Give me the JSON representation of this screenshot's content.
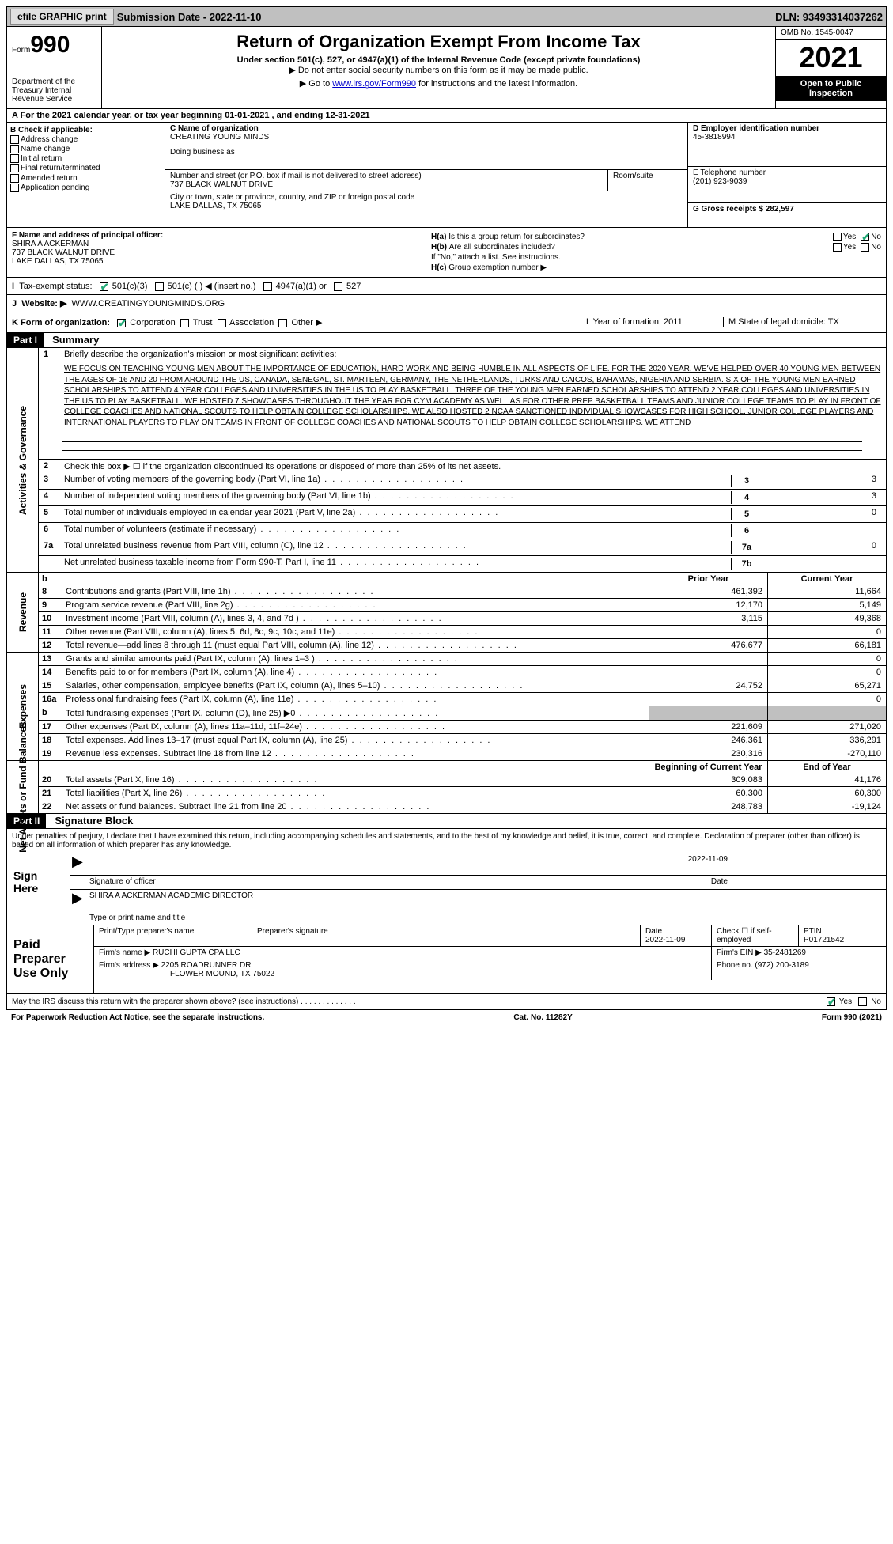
{
  "topbar": {
    "efile_btn": "efile GRAPHIC print",
    "submission": "Submission Date - 2022-11-10",
    "dln": "DLN: 93493314037262"
  },
  "header": {
    "form_prefix": "Form",
    "form_no": "990",
    "dept": "Department of the Treasury\nInternal Revenue Service",
    "title": "Return of Organization Exempt From Income Tax",
    "sub": "Under section 501(c), 527, or 4947(a)(1) of the Internal Revenue Code (except private foundations)",
    "sub2": "▶ Do not enter social security numbers on this form as it may be made public.",
    "goto_pre": "▶ Go to ",
    "goto_link": "www.irs.gov/Form990",
    "goto_post": " for instructions and the latest information.",
    "omb": "OMB No. 1545-0047",
    "year": "2021",
    "open": "Open to Public Inspection"
  },
  "a_row": "A For the 2021 calendar year, or tax year beginning 01-01-2021   , and ending 12-31-2021",
  "b": {
    "title": "B Check if applicable:",
    "items": [
      "Address change",
      "Name change",
      "Initial return",
      "Final return/terminated",
      "Amended return",
      "Application pending"
    ]
  },
  "c": {
    "name_label": "C Name of organization",
    "name": "CREATING YOUNG MINDS",
    "dba_label": "Doing business as",
    "addr_label": "Number and street (or P.O. box if mail is not delivered to street address)",
    "addr": "737 BLACK WALNUT DRIVE",
    "room_label": "Room/suite",
    "city_label": "City or town, state or province, country, and ZIP or foreign postal code",
    "city": "LAKE DALLAS, TX  75065"
  },
  "d": {
    "label": "D Employer identification number",
    "val": "45-3818994"
  },
  "e": {
    "label": "E Telephone number",
    "val": "(201) 923-9039"
  },
  "g": {
    "label": "G Gross receipts $ 282,597"
  },
  "f": {
    "label": "F  Name and address of principal officer:",
    "name": "SHIRA A ACKERMAN",
    "addr1": "737 BLACK WALNUT DRIVE",
    "addr2": "LAKE DALLAS, TX  75065"
  },
  "h": {
    "a_label": "Is this a group return for subordinates?",
    "a_tag": "H(a)",
    "b_label": "Are all subordinates included?",
    "b_tag": "H(b)",
    "note": "If \"No,\" attach a list. See instructions.",
    "c_label": "Group exemption number ▶",
    "c_tag": "H(c)",
    "yes": "Yes",
    "no": "No"
  },
  "i": {
    "label": "Tax-exempt status:",
    "opts": [
      "501(c)(3)",
      "501(c) (  ) ◀ (insert no.)",
      "4947(a)(1) or",
      "527"
    ]
  },
  "j": {
    "label": "Website: ▶",
    "val": "WWW.CREATINGYOUNGMINDS.ORG"
  },
  "k": {
    "label": "K Form of organization:",
    "opts": [
      "Corporation",
      "Trust",
      "Association",
      "Other ▶"
    ],
    "l_label": "L Year of formation: 2011",
    "m_label": "M State of legal domicile: TX"
  },
  "part1": {
    "tag": "Part I",
    "title": "Summary",
    "line1_label": "Briefly describe the organization's mission or most significant activities:",
    "line1_text": "WE FOCUS ON TEACHING YOUNG MEN ABOUT THE IMPORTANCE OF EDUCATION, HARD WORK AND BEING HUMBLE IN ALL ASPECTS OF LIFE. FOR THE 2020 YEAR, WE'VE HELPED OVER 40 YOUNG MEN BETWEEN THE AGES OF 16 AND 20 FROM AROUND THE US, CANADA, SENEGAL, ST. MARTEEN, GERMANY, THE NETHERLANDS, TURKS AND CAICOS, BAHAMAS, NIGERIA AND SERBIA. SIX OF THE YOUNG MEN EARNED SCHOLARSHIPS TO ATTEND 4 YEAR COLLEGES AND UNIVERSITIES IN THE US TO PLAY BASKETBALL. THREE OF THE YOUNG MEN EARNED SCHOLARSHIPS TO ATTEND 2 YEAR COLLEGES AND UNIVERSITIES IN THE US TO PLAY BASKETBALL. WE HOSTED 7 SHOWCASES THROUGHOUT THE YEAR FOR CYM ACADEMY AS WELL AS FOR OTHER PREP BASKETBALL TEAMS AND JUNIOR COLLEGE TEAMS TO PLAY IN FRONT OF COLLEGE COACHES AND NATIONAL SCOUTS TO HELP OBTAIN COLLEGE SCHOLARSHIPS. WE ALSO HOSTED 2 NCAA SANCTIONED INDIVIDUAL SHOWCASES FOR HIGH SCHOOL, JUNIOR COLLEGE PLAYERS AND INTERNATIONAL PLAYERS TO PLAY ON TEAMS IN FRONT OF COLLEGE COACHES AND NATIONAL SCOUTS TO HELP OBTAIN COLLEGE SCHOLARSHIPS. WE ATTEND",
    "line2": "Check this box ▶ ☐ if the organization discontinued its operations or disposed of more than 25% of its net assets.",
    "lines_gov": [
      {
        "n": "3",
        "d": "Number of voting members of the governing body (Part VI, line 1a)",
        "box": "3",
        "v": "3"
      },
      {
        "n": "4",
        "d": "Number of independent voting members of the governing body (Part VI, line 1b)",
        "box": "4",
        "v": "3"
      },
      {
        "n": "5",
        "d": "Total number of individuals employed in calendar year 2021 (Part V, line 2a)",
        "box": "5",
        "v": "0"
      },
      {
        "n": "6",
        "d": "Total number of volunteers (estimate if necessary)",
        "box": "6",
        "v": ""
      },
      {
        "n": "7a",
        "d": "Total unrelated business revenue from Part VIII, column (C), line 12",
        "box": "7a",
        "v": "0"
      },
      {
        "n": "",
        "d": "Net unrelated business taxable income from Form 990-T, Part I, line 11",
        "box": "7b",
        "v": ""
      }
    ],
    "col_prior": "Prior Year",
    "col_current": "Current Year",
    "col_begin": "Beginning of Current Year",
    "col_end": "End of Year",
    "revenue": [
      {
        "n": "8",
        "d": "Contributions and grants (Part VIII, line 1h)",
        "p": "461,392",
        "c": "11,664"
      },
      {
        "n": "9",
        "d": "Program service revenue (Part VIII, line 2g)",
        "p": "12,170",
        "c": "5,149"
      },
      {
        "n": "10",
        "d": "Investment income (Part VIII, column (A), lines 3, 4, and 7d )",
        "p": "3,115",
        "c": "49,368"
      },
      {
        "n": "11",
        "d": "Other revenue (Part VIII, column (A), lines 5, 6d, 8c, 9c, 10c, and 11e)",
        "p": "",
        "c": "0"
      },
      {
        "n": "12",
        "d": "Total revenue—add lines 8 through 11 (must equal Part VIII, column (A), line 12)",
        "p": "476,677",
        "c": "66,181"
      }
    ],
    "expenses": [
      {
        "n": "13",
        "d": "Grants and similar amounts paid (Part IX, column (A), lines 1–3 )",
        "p": "",
        "c": "0"
      },
      {
        "n": "14",
        "d": "Benefits paid to or for members (Part IX, column (A), line 4)",
        "p": "",
        "c": "0"
      },
      {
        "n": "15",
        "d": "Salaries, other compensation, employee benefits (Part IX, column (A), lines 5–10)",
        "p": "24,752",
        "c": "65,271"
      },
      {
        "n": "16a",
        "d": "Professional fundraising fees (Part IX, column (A), line 11e)",
        "p": "",
        "c": "0"
      },
      {
        "n": "b",
        "d": "Total fundraising expenses (Part IX, column (D), line 25) ▶0",
        "p": "shade",
        "c": "shade"
      },
      {
        "n": "17",
        "d": "Other expenses (Part IX, column (A), lines 11a–11d, 11f–24e)",
        "p": "221,609",
        "c": "271,020"
      },
      {
        "n": "18",
        "d": "Total expenses. Add lines 13–17 (must equal Part IX, column (A), line 25)",
        "p": "246,361",
        "c": "336,291"
      },
      {
        "n": "19",
        "d": "Revenue less expenses. Subtract line 18 from line 12",
        "p": "230,316",
        "c": "-270,110"
      }
    ],
    "net": [
      {
        "n": "20",
        "d": "Total assets (Part X, line 16)",
        "p": "309,083",
        "c": "41,176"
      },
      {
        "n": "21",
        "d": "Total liabilities (Part X, line 26)",
        "p": "60,300",
        "c": "60,300"
      },
      {
        "n": "22",
        "d": "Net assets or fund balances. Subtract line 21 from line 20",
        "p": "248,783",
        "c": "-19,124"
      }
    ]
  },
  "vlabels": {
    "gov": "Activities & Governance",
    "rev": "Revenue",
    "exp": "Expenses",
    "net": "Net Assets or Fund Balances"
  },
  "part2": {
    "tag": "Part II",
    "title": "Signature Block",
    "declare": "Under penalties of perjury, I declare that I have examined this return, including accompanying schedules and statements, and to the best of my knowledge and belief, it is true, correct, and complete. Declaration of preparer (other than officer) is based on all information of which preparer has any knowledge.",
    "sign_here": "Sign Here",
    "sig_of_officer": "Signature of officer",
    "sig_date": "2022-11-09",
    "date_label": "Date",
    "officer_name": "SHIRA A ACKERMAN  ACADEMIC DIRECTOR",
    "type_name": "Type or print name and title"
  },
  "preparer": {
    "label": "Paid Preparer Use Only",
    "print_name_label": "Print/Type preparer's name",
    "sig_label": "Preparer's signature",
    "date_label": "Date",
    "date": "2022-11-09",
    "check_label": "Check ☐ if self-employed",
    "ptin_label": "PTIN",
    "ptin": "P01721542",
    "firm_name_label": "Firm's name    ▶",
    "firm_name": "RUCHI GUPTA CPA LLC",
    "firm_ein_label": "Firm's EIN ▶",
    "firm_ein": "35-2481269",
    "firm_addr_label": "Firm's address ▶",
    "firm_addr1": "2205 ROADRUNNER DR",
    "firm_addr2": "FLOWER MOUND, TX  75022",
    "phone_label": "Phone no.",
    "phone": "(972) 200-3189"
  },
  "discuss": {
    "q": "May the IRS discuss this return with the preparer shown above? (see instructions)",
    "yes": "Yes",
    "no": "No"
  },
  "bottom": {
    "left": "For Paperwork Reduction Act Notice, see the separate instructions.",
    "mid": "Cat. No. 11282Y",
    "right": "Form 990 (2021)"
  }
}
